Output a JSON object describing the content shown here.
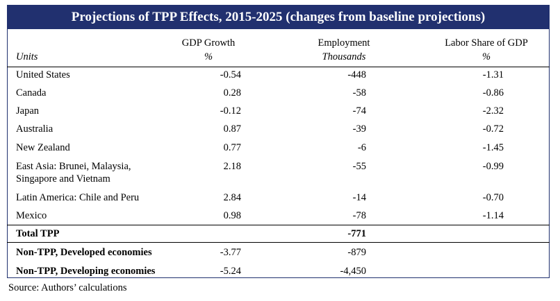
{
  "title": "Projections of TPP Effects, 2015-2025 (changes from baseline projections)",
  "header": {
    "units_label": "Units",
    "columns": [
      {
        "label": "GDP Growth",
        "unit": "%"
      },
      {
        "label": "Employment",
        "unit": "Thousands"
      },
      {
        "label": "Labor Share of GDP",
        "unit": "%"
      }
    ]
  },
  "rows": [
    {
      "name": "United States",
      "gdp_growth": "-0.54",
      "employment": "-448",
      "labor_share": "-1.31"
    },
    {
      "name": "Canada",
      "gdp_growth": "0.28",
      "employment": "-58",
      "labor_share": "-0.86"
    },
    {
      "name": "Japan",
      "gdp_growth": "-0.12",
      "employment": "-74",
      "labor_share": "-2.32"
    },
    {
      "name": "Australia",
      "gdp_growth": "0.87",
      "employment": "-39",
      "labor_share": "-0.72"
    },
    {
      "name": "New Zealand",
      "gdp_growth": "0.77",
      "employment": "-6",
      "labor_share": "-1.45"
    },
    {
      "name_line1": "East Asia: Brunei, Malaysia,",
      "name_line2": "Singapore and Vietnam",
      "gdp_growth": "2.18",
      "employment": "-55",
      "labor_share": "-0.99"
    },
    {
      "name": "Latin America: Chile and Peru",
      "gdp_growth": "2.84",
      "employment": "-14",
      "labor_share": "-0.70"
    },
    {
      "name": "Mexico",
      "gdp_growth": "0.98",
      "employment": "-78",
      "labor_share": "-1.14"
    }
  ],
  "total": {
    "name": "Total TPP",
    "employment": "-771"
  },
  "non_tpp": [
    {
      "name": "Non-TPP, Developed economies",
      "gdp_growth": "-3.77",
      "employment": "-879"
    },
    {
      "name": "Non-TPP, Developing economies",
      "gdp_growth": "-5.24",
      "employment": "-4,450"
    }
  ],
  "source": "Source: Authors’ calculations"
}
